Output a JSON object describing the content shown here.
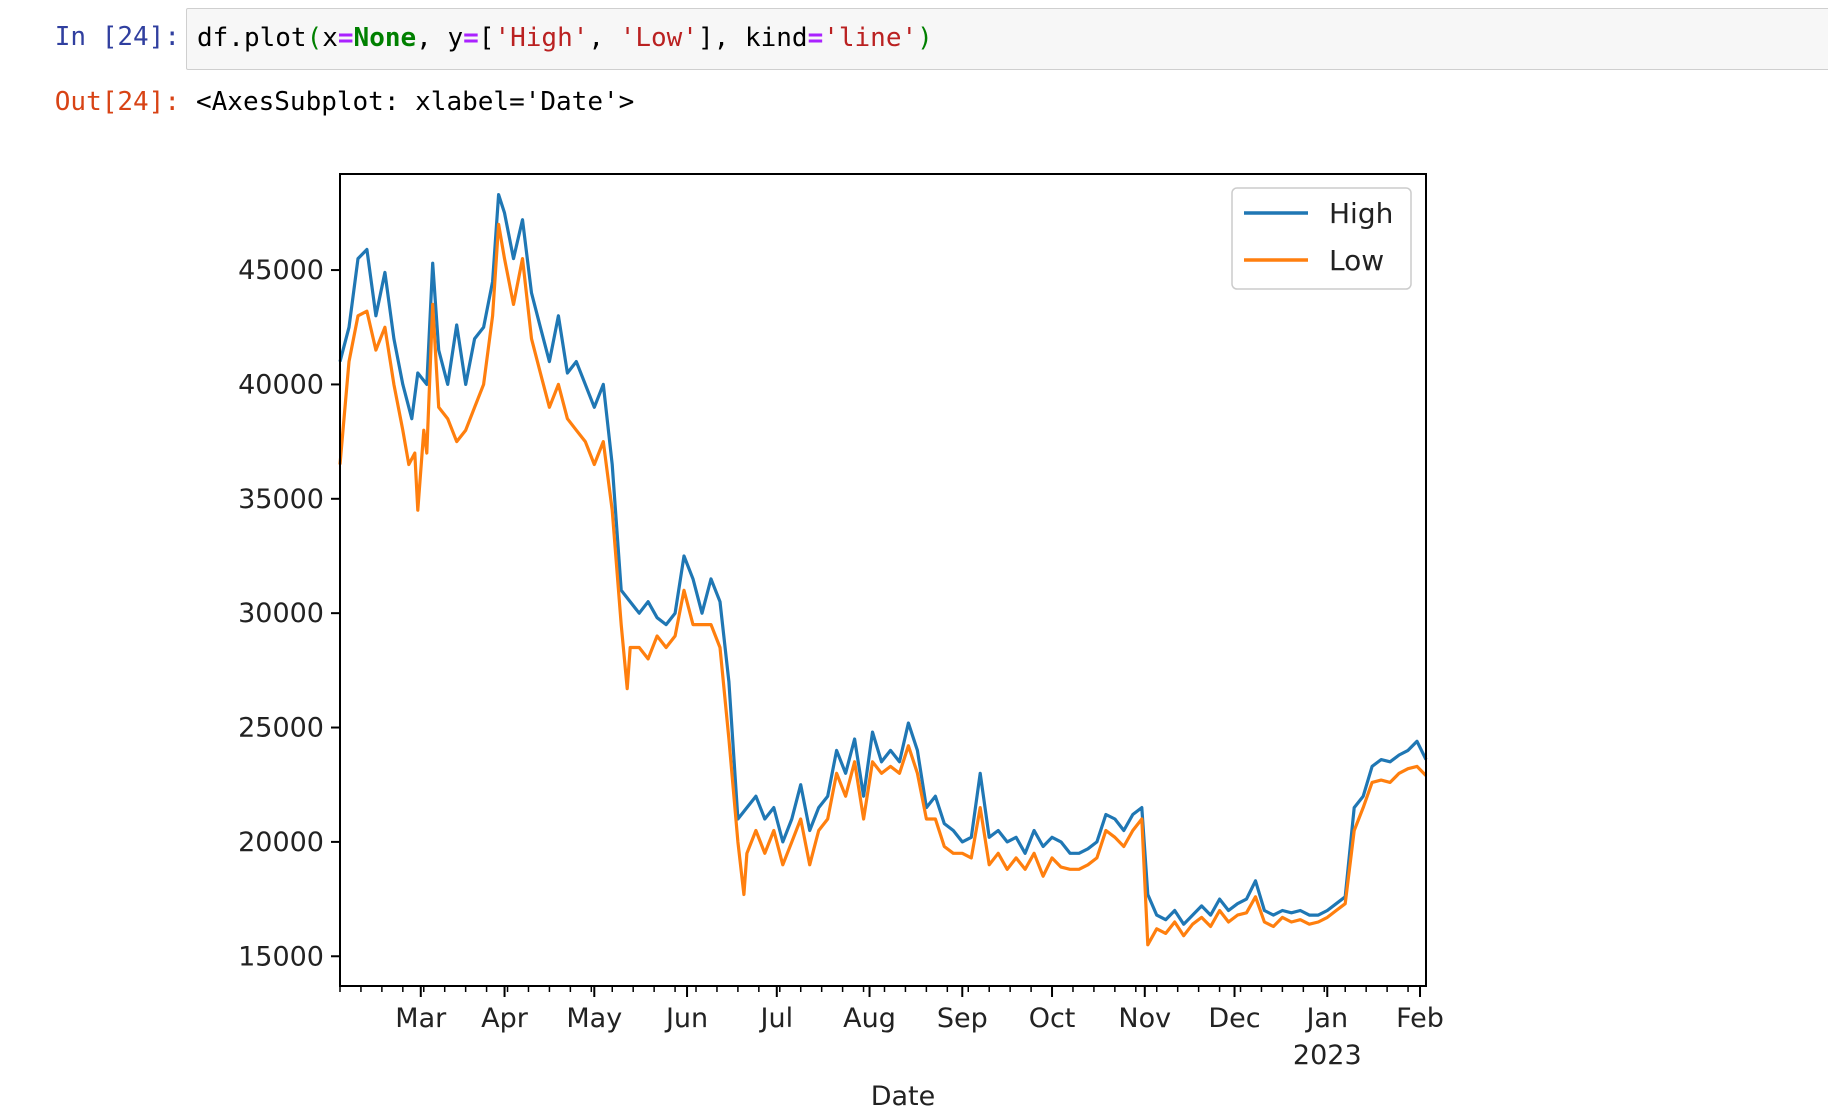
{
  "notebook": {
    "in_prompt": "In [24]:",
    "out_prompt": "Out[24]:",
    "code": {
      "func": "df.plot",
      "open": "(",
      "arg1_name": "x",
      "eq": "=",
      "arg1_val": "None",
      "comma": ", ",
      "arg2_name": "y",
      "list_open": "[",
      "str_high": "'High'",
      "str_low": "'Low'",
      "list_close": "]",
      "arg3_name": "kind",
      "str_line": "'line'",
      "close": ")"
    },
    "output_text": "<AxesSubplot: xlabel='Date'>"
  },
  "chart_data": {
    "type": "line",
    "title": "",
    "xlabel": "Date",
    "ylabel": "",
    "x_range": [
      0,
      363
    ],
    "ylim": [
      13700,
      49200
    ],
    "y_ticks": [
      15000,
      20000,
      25000,
      30000,
      35000,
      40000,
      45000
    ],
    "y_tick_labels": [
      "15000",
      "20000",
      "25000",
      "30000",
      "35000",
      "40000",
      "45000"
    ],
    "month_ticks": [
      {
        "day": 27,
        "label": "Mar"
      },
      {
        "day": 55,
        "label": "Apr"
      },
      {
        "day": 85,
        "label": "May"
      },
      {
        "day": 116,
        "label": "Jun"
      },
      {
        "day": 146,
        "label": "Jul"
      },
      {
        "day": 177,
        "label": "Aug"
      },
      {
        "day": 208,
        "label": "Sep"
      },
      {
        "day": 238,
        "label": "Oct"
      },
      {
        "day": 269,
        "label": "Nov"
      },
      {
        "day": 299,
        "label": "Dec"
      },
      {
        "day": 330,
        "label": "Jan"
      },
      {
        "day": 361,
        "label": "Feb"
      }
    ],
    "year_label": {
      "day": 330,
      "label": "2023"
    },
    "legend": {
      "position": "top-right",
      "entries": [
        "High",
        "Low"
      ]
    },
    "series": [
      {
        "name": "High",
        "color": "#1f77b4",
        "x": [
          0,
          3,
          6,
          9,
          12,
          15,
          18,
          21,
          24,
          26,
          29,
          31,
          33,
          36,
          39,
          42,
          45,
          48,
          51,
          53,
          55,
          58,
          61,
          64,
          67,
          70,
          73,
          76,
          79,
          82,
          85,
          88,
          91,
          94,
          97,
          100,
          103,
          106,
          109,
          112,
          115,
          118,
          121,
          124,
          127,
          130,
          133,
          136,
          139,
          142,
          145,
          148,
          151,
          154,
          157,
          160,
          163,
          166,
          169,
          172,
          175,
          178,
          181,
          184,
          187,
          190,
          193,
          196,
          199,
          202,
          205,
          208,
          211,
          214,
          217,
          220,
          223,
          226,
          229,
          232,
          235,
          238,
          241,
          244,
          247,
          250,
          253,
          256,
          259,
          262,
          265,
          268,
          270,
          273,
          276,
          279,
          282,
          285,
          288,
          291,
          294,
          297,
          300,
          303,
          306,
          309,
          312,
          315,
          318,
          321,
          324,
          327,
          330,
          333,
          336,
          339,
          342,
          345,
          348,
          351,
          354,
          357,
          360,
          363
        ],
        "values": [
          41000,
          42500,
          45500,
          45900,
          43000,
          44900,
          42000,
          40000,
          38500,
          40500,
          40000,
          45300,
          41500,
          40000,
          42600,
          40000,
          42000,
          42500,
          44500,
          48300,
          47500,
          45500,
          47200,
          44000,
          42500,
          41000,
          43000,
          40500,
          41000,
          40000,
          39000,
          40000,
          36500,
          31000,
          30500,
          30000,
          30500,
          29800,
          29500,
          30000,
          32500,
          31500,
          30000,
          31500,
          30500,
          27000,
          21000,
          21500,
          22000,
          21000,
          21500,
          20000,
          21000,
          22500,
          20500,
          21500,
          22000,
          24000,
          23000,
          24500,
          22000,
          24800,
          23500,
          24000,
          23500,
          25200,
          24000,
          21500,
          22000,
          20800,
          20500,
          20000,
          20200,
          23000,
          20200,
          20500,
          20000,
          20200,
          19500,
          20500,
          19800,
          20200,
          20000,
          19500,
          19500,
          19700,
          20000,
          21200,
          21000,
          20500,
          21200,
          21500,
          17700,
          16800,
          16600,
          17000,
          16400,
          16800,
          17200,
          16800,
          17500,
          17000,
          17300,
          17500,
          18300,
          17000,
          16800,
          17000,
          16900,
          17000,
          16800,
          16800,
          17000,
          17300,
          17600,
          21500,
          22000,
          23300,
          23600,
          23500,
          23800,
          24000,
          24400,
          23600
        ]
      },
      {
        "name": "Low",
        "color": "#ff7f0e",
        "x": [
          0,
          3,
          6,
          9,
          12,
          15,
          18,
          21,
          23,
          25,
          26,
          28,
          29,
          31,
          33,
          36,
          39,
          42,
          45,
          48,
          51,
          53,
          55,
          58,
          61,
          64,
          67,
          70,
          73,
          76,
          79,
          82,
          85,
          88,
          91,
          94,
          96,
          97,
          100,
          103,
          106,
          109,
          112,
          115,
          118,
          121,
          124,
          127,
          130,
          133,
          135,
          136,
          139,
          142,
          145,
          148,
          151,
          154,
          157,
          160,
          163,
          166,
          169,
          172,
          175,
          178,
          181,
          184,
          187,
          190,
          193,
          196,
          199,
          202,
          205,
          208,
          211,
          214,
          217,
          220,
          223,
          226,
          229,
          232,
          235,
          238,
          241,
          244,
          247,
          250,
          253,
          256,
          259,
          262,
          265,
          268,
          270,
          273,
          276,
          279,
          282,
          285,
          288,
          291,
          294,
          297,
          300,
          303,
          306,
          309,
          312,
          315,
          318,
          321,
          324,
          327,
          330,
          333,
          336,
          339,
          342,
          345,
          348,
          351,
          354,
          357,
          360,
          363
        ],
        "values": [
          36500,
          41000,
          43000,
          43200,
          41500,
          42500,
          40000,
          38000,
          36500,
          37000,
          34500,
          38000,
          37000,
          43500,
          39000,
          38500,
          37500,
          38000,
          39000,
          40000,
          43000,
          47000,
          45500,
          43500,
          45500,
          42000,
          40500,
          39000,
          40000,
          38500,
          38000,
          37500,
          36500,
          37500,
          34500,
          29500,
          26700,
          28500,
          28500,
          28000,
          29000,
          28500,
          29000,
          31000,
          29500,
          29500,
          29500,
          28500,
          24500,
          20000,
          17700,
          19500,
          20500,
          19500,
          20500,
          19000,
          20000,
          21000,
          19000,
          20500,
          21000,
          23000,
          22000,
          23500,
          21000,
          23500,
          23000,
          23300,
          23000,
          24200,
          23000,
          21000,
          21000,
          19800,
          19500,
          19500,
          19300,
          21500,
          19000,
          19500,
          18800,
          19300,
          18800,
          19500,
          18500,
          19300,
          18900,
          18800,
          18800,
          19000,
          19300,
          20500,
          20200,
          19800,
          20500,
          21000,
          15500,
          16200,
          16000,
          16500,
          15900,
          16400,
          16700,
          16300,
          17000,
          16500,
          16800,
          16900,
          17600,
          16500,
          16300,
          16700,
          16500,
          16600,
          16400,
          16500,
          16700,
          17000,
          17300,
          20500,
          21500,
          22600,
          22700,
          22600,
          23000,
          23200,
          23300,
          22900
        ]
      }
    ]
  }
}
